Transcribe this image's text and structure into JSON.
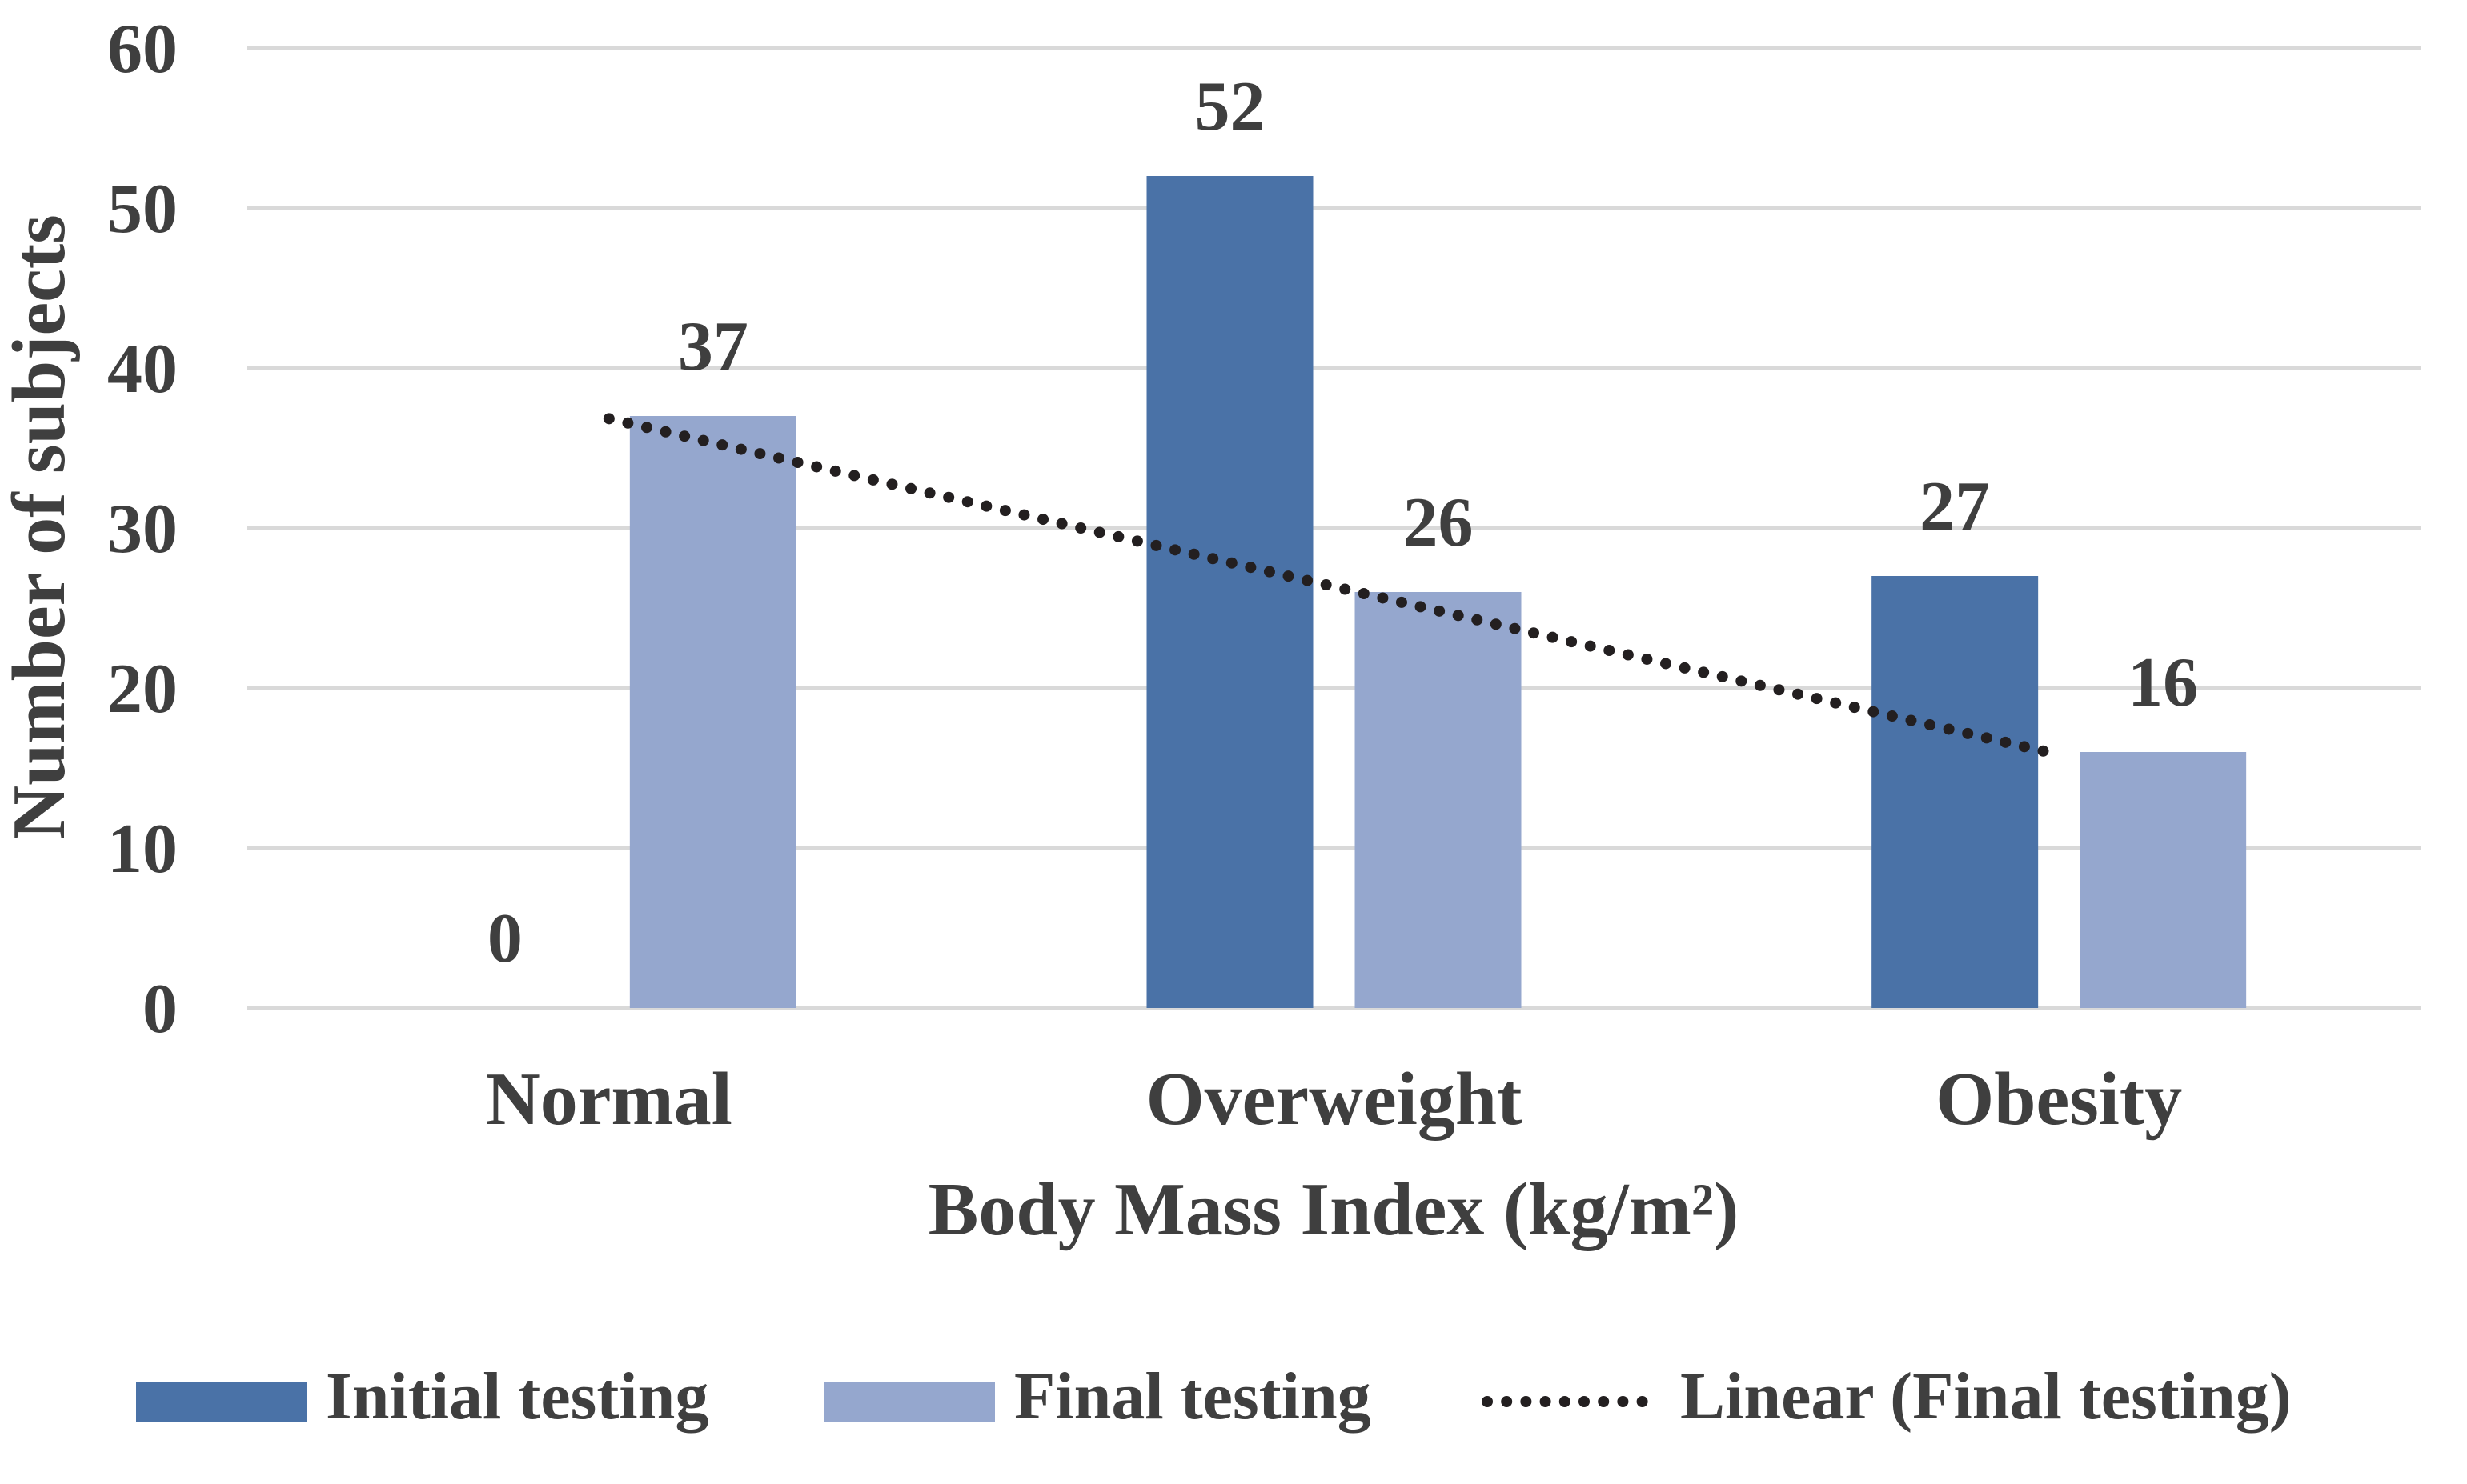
{
  "chart_data": {
    "type": "bar",
    "categories": [
      "Normal",
      "Overweight",
      "Obesity"
    ],
    "series": [
      {
        "name": "Initial testing",
        "values": [
          0,
          52,
          27
        ],
        "color": "#4A72A7"
      },
      {
        "name": "Final testing",
        "values": [
          37,
          26,
          16
        ],
        "color": "#95A7CE"
      }
    ],
    "trendline": {
      "name": "Linear (Final testing)",
      "based_on": "Final testing",
      "fit": "linear",
      "endpoint_values": [
        36.833,
        15.833
      ],
      "color": "#231F20"
    },
    "data_labels": {
      "Initial testing": [
        "0",
        "52",
        "27"
      ],
      "Final testing": [
        "37",
        "26",
        "16"
      ]
    },
    "xlabel": "Body Mass Index (kg/m²)",
    "ylabel": "Number of subjects",
    "ylim": [
      0,
      60
    ],
    "yticks": [
      0,
      10,
      20,
      30,
      40,
      50,
      60
    ],
    "grid": true,
    "legend_position": "bottom",
    "colors": {
      "gridline": "#D9D9D9",
      "text": "#3F3F3F",
      "background": "#FFFFFF"
    }
  },
  "legend": {
    "items": [
      {
        "label": "Initial testing",
        "swatch": "rect",
        "color": "#4A72A7"
      },
      {
        "label": "Final testing",
        "swatch": "rect",
        "color": "#95A7CE"
      },
      {
        "label": "Linear (Final testing)",
        "swatch": "dotted-line",
        "color": "#231F20"
      }
    ]
  }
}
